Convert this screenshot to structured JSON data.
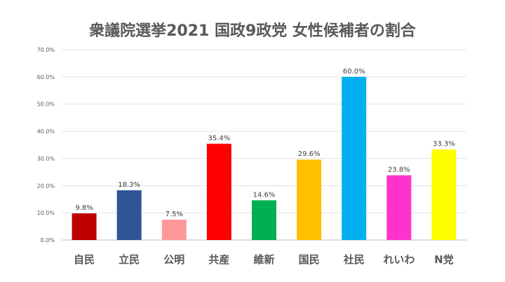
{
  "chart_data": {
    "type": "bar",
    "title": "衆議院選挙2021 国政9政党 女性候補者の割合",
    "xlabel": "",
    "ylabel": "",
    "ylim": [
      0,
      70
    ],
    "yticks": [
      "0.0%",
      "10.0%",
      "20.0%",
      "30.0%",
      "40.0%",
      "50.0%",
      "60.0%",
      "70.0%"
    ],
    "grid": true,
    "categories": [
      "自民",
      "立民",
      "公明",
      "共産",
      "維新",
      "国民",
      "社民",
      "れいわ",
      "N党"
    ],
    "values": [
      9.8,
      18.3,
      7.5,
      35.4,
      14.6,
      29.6,
      60.0,
      23.8,
      33.3
    ],
    "labels": [
      "9.8%",
      "18.3%",
      "7.5%",
      "35.4%",
      "14.6%",
      "29.6%",
      "60.0%",
      "23.8%",
      "33.3%"
    ],
    "colors": [
      "#C00000",
      "#2F5597",
      "#FF9999",
      "#FF0000",
      "#00B050",
      "#FFC000",
      "#00B0F0",
      "#FF33CC",
      "#FFFF00"
    ]
  }
}
